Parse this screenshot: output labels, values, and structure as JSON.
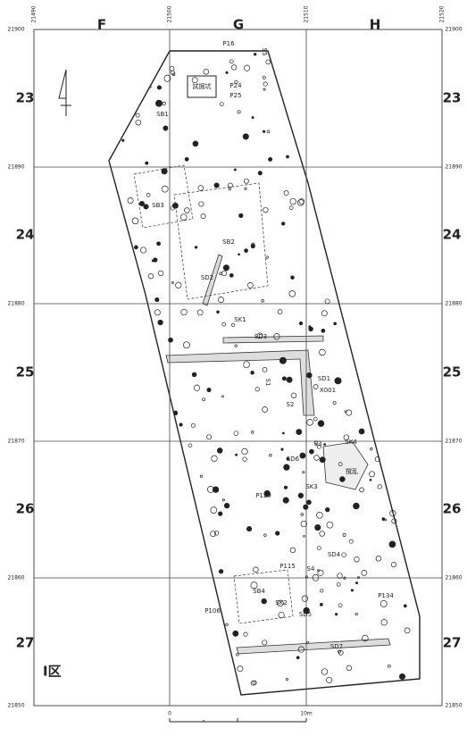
{
  "map": {
    "columns": [
      "F",
      "G",
      "H"
    ],
    "rows": [
      "23",
      "24",
      "25",
      "26",
      "27"
    ],
    "top_coords": [
      "21490",
      "21500",
      "21510",
      "21520"
    ],
    "side_coords": [
      "21900",
      "21890",
      "21880",
      "21870",
      "21860",
      "21850"
    ],
    "features": [
      "P16",
      "S5",
      "P24",
      "P25",
      "試掘坑",
      "SB1",
      "SB3",
      "SB2",
      "SD2",
      "SK1",
      "SD3",
      "S1",
      "SD1",
      "X001",
      "S2",
      "S3",
      "SK4",
      "SD6",
      "撹乱",
      "SK3",
      "P120",
      "SD4",
      "P115",
      "S4",
      "SB4",
      "P134",
      "P106",
      "SK2",
      "SD5",
      "SD7"
    ],
    "area_label": "I区",
    "scale": {
      "start": "0",
      "end": "10m"
    }
  }
}
